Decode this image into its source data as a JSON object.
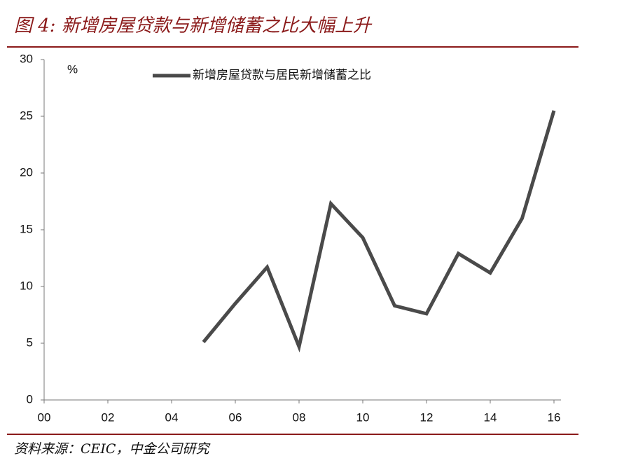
{
  "chart_data": {
    "type": "line",
    "title": "图 4: 新增房屋贷款与新增储蓄之比大幅上升",
    "y_unit": "%",
    "source": "资料来源：CEIC，中金公司研究",
    "x": [
      5,
      6,
      7,
      8,
      9,
      10,
      11,
      12,
      13,
      14,
      15,
      16
    ],
    "series": [
      {
        "name": "新增房屋贷款与居民新增储蓄之比",
        "color": "#4a4a4a",
        "values": [
          5.1,
          8.5,
          11.7,
          4.7,
          17.3,
          14.3,
          8.3,
          7.6,
          12.9,
          11.2,
          16.0,
          25.5
        ]
      }
    ],
    "xlim": [
      0,
      16
    ],
    "xticks": [
      {
        "value": 0,
        "label": "00"
      },
      {
        "value": 2,
        "label": "02"
      },
      {
        "value": 4,
        "label": "04"
      },
      {
        "value": 6,
        "label": "06"
      },
      {
        "value": 8,
        "label": "08"
      },
      {
        "value": 10,
        "label": "10"
      },
      {
        "value": 12,
        "label": "12"
      },
      {
        "value": 14,
        "label": "14"
      },
      {
        "value": 16,
        "label": "16"
      }
    ],
    "ylim": [
      0,
      30
    ],
    "yticks": [
      0,
      5,
      10,
      15,
      20,
      25,
      30
    ],
    "grid": false,
    "legend": "top"
  }
}
